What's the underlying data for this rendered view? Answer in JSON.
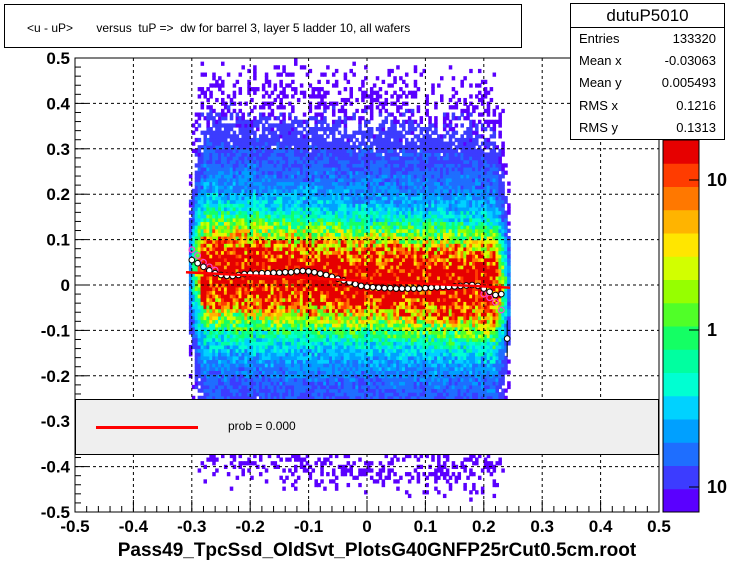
{
  "title": "<u - uP>       versus  tuP =>  dw for barrel 3, layer 5 ladder 10, all wafers",
  "stats": {
    "name": "dutuP5010",
    "rows": [
      {
        "label": "Entries",
        "value": "133320"
      },
      {
        "label": "Mean x",
        "value": "-0.03063"
      },
      {
        "label": "Mean y",
        "value": "0.005493"
      },
      {
        "label": "RMS x",
        "value": "0.1216"
      },
      {
        "label": "RMS y",
        "value": "0.1313"
      }
    ]
  },
  "legend": {
    "label": "prob = 0.000"
  },
  "xtitle": "Pass49_TpcSsd_OldSvt_PlotsG40GNFP25rCut0.5cm.root",
  "chart_data": {
    "type": "heatmap",
    "xlim": [
      -0.5,
      0.5
    ],
    "ylim": [
      -0.5,
      0.5
    ],
    "x_ticks": [
      "-0.5",
      "-0.4",
      "-0.3",
      "-0.2",
      "-0.1",
      "0",
      "0.1",
      "0.2",
      "0.3",
      "0.4",
      "0.5"
    ],
    "y_ticks": [
      "-0.5",
      "-0.4",
      "-0.3",
      "-0.2",
      "-0.1",
      "0",
      "0.1",
      "0.2",
      "0.3",
      "0.4",
      "0.5"
    ],
    "color_scale": {
      "type": "log",
      "labels": [
        "10",
        "1",
        "10"
      ]
    },
    "grid": true,
    "profile": {
      "x": [
        -0.3,
        -0.29,
        -0.28,
        -0.27,
        -0.26,
        -0.25,
        -0.24,
        -0.23,
        -0.22,
        -0.21,
        -0.2,
        -0.19,
        -0.18,
        -0.17,
        -0.16,
        -0.15,
        -0.14,
        -0.13,
        -0.12,
        -0.11,
        -0.1,
        -0.09,
        -0.08,
        -0.07,
        -0.06,
        -0.05,
        -0.04,
        -0.03,
        -0.02,
        -0.01,
        0.0,
        0.01,
        0.02,
        0.03,
        0.04,
        0.05,
        0.06,
        0.07,
        0.08,
        0.09,
        0.1,
        0.11,
        0.12,
        0.13,
        0.14,
        0.15,
        0.16,
        0.17,
        0.18,
        0.19,
        0.2,
        0.21,
        0.22,
        0.23,
        0.24
      ],
      "y": [
        0.055,
        0.048,
        0.04,
        0.032,
        0.026,
        0.022,
        0.02,
        0.02,
        0.022,
        0.024,
        0.025,
        0.025,
        0.026,
        0.026,
        0.027,
        0.027,
        0.028,
        0.028,
        0.03,
        0.031,
        0.03,
        0.028,
        0.025,
        0.022,
        0.018,
        0.014,
        0.01,
        0.006,
        0.002,
        -0.002,
        -0.004,
        -0.005,
        -0.006,
        -0.007,
        -0.007,
        -0.008,
        -0.008,
        -0.008,
        -0.008,
        -0.008,
        -0.007,
        -0.006,
        -0.005,
        -0.004,
        -0.004,
        -0.003,
        -0.002,
        -0.001,
        0.0,
        -0.002,
        -0.008,
        -0.015,
        -0.022,
        -0.02,
        -0.118
      ]
    },
    "profile2": {
      "x": [
        -0.3,
        -0.29,
        -0.28,
        -0.27,
        -0.26,
        0.2,
        0.21,
        0.22,
        0.23
      ],
      "y": [
        0.078,
        0.065,
        0.05,
        0.04,
        0.033,
        -0.02,
        -0.028,
        -0.038,
        -0.055
      ]
    },
    "fit": {
      "x": [
        -0.31,
        0.245
      ],
      "y": [
        0.028,
        -0.006
      ]
    }
  }
}
